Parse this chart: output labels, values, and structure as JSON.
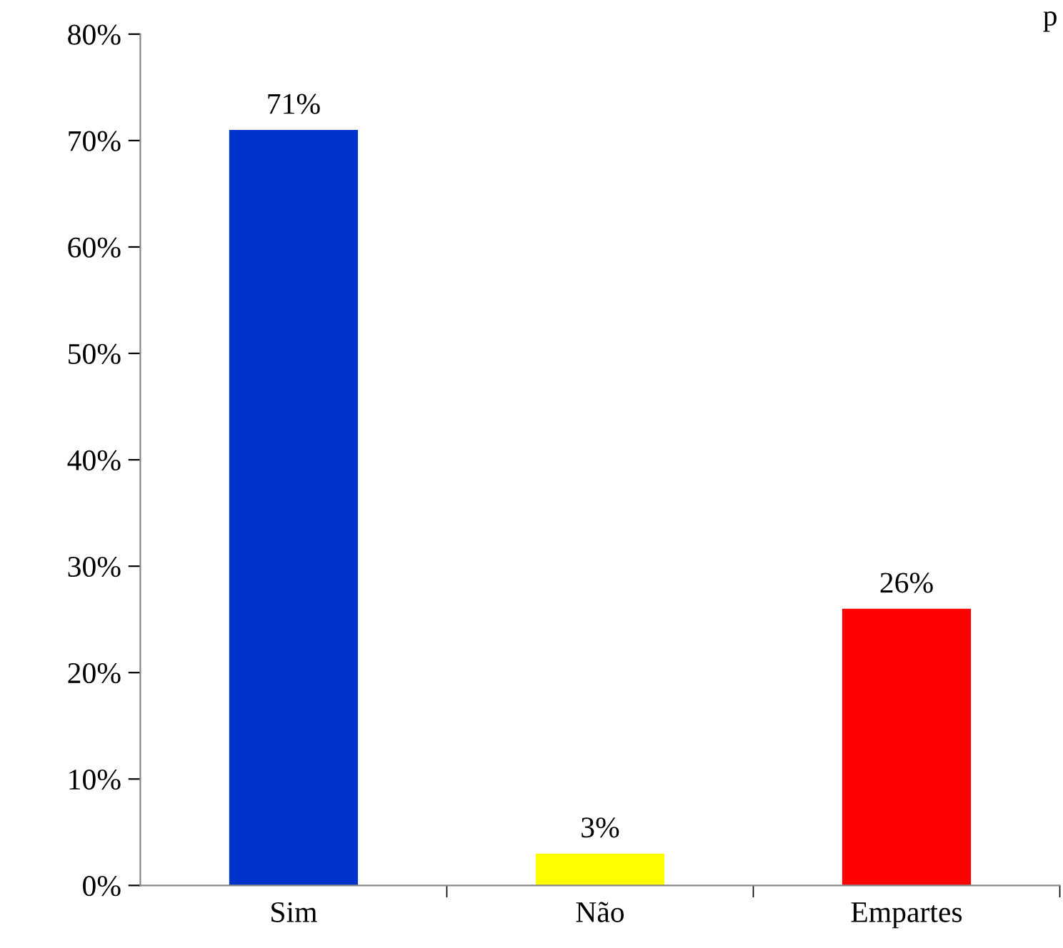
{
  "chart_data": {
    "type": "bar",
    "categories": [
      "Sim",
      "Não",
      "Empartes"
    ],
    "values": [
      71,
      3,
      26
    ],
    "colors": [
      "#0033cc",
      "#ffff00",
      "#ff0000"
    ],
    "value_labels": [
      "71%",
      "3%",
      "26%"
    ],
    "ylim": [
      0,
      80
    ],
    "yticks": [
      {
        "value": 0,
        "label": "0%"
      },
      {
        "value": 10,
        "label": "10%"
      },
      {
        "value": 20,
        "label": "20%"
      },
      {
        "value": 30,
        "label": "30%"
      },
      {
        "value": 40,
        "label": "40%"
      },
      {
        "value": 50,
        "label": "50%"
      },
      {
        "value": 60,
        "label": "60%"
      },
      {
        "value": 70,
        "label": "70%"
      },
      {
        "value": 80,
        "label": "80%"
      }
    ],
    "grid": false,
    "legend": false,
    "annotations": [
      "p"
    ]
  }
}
